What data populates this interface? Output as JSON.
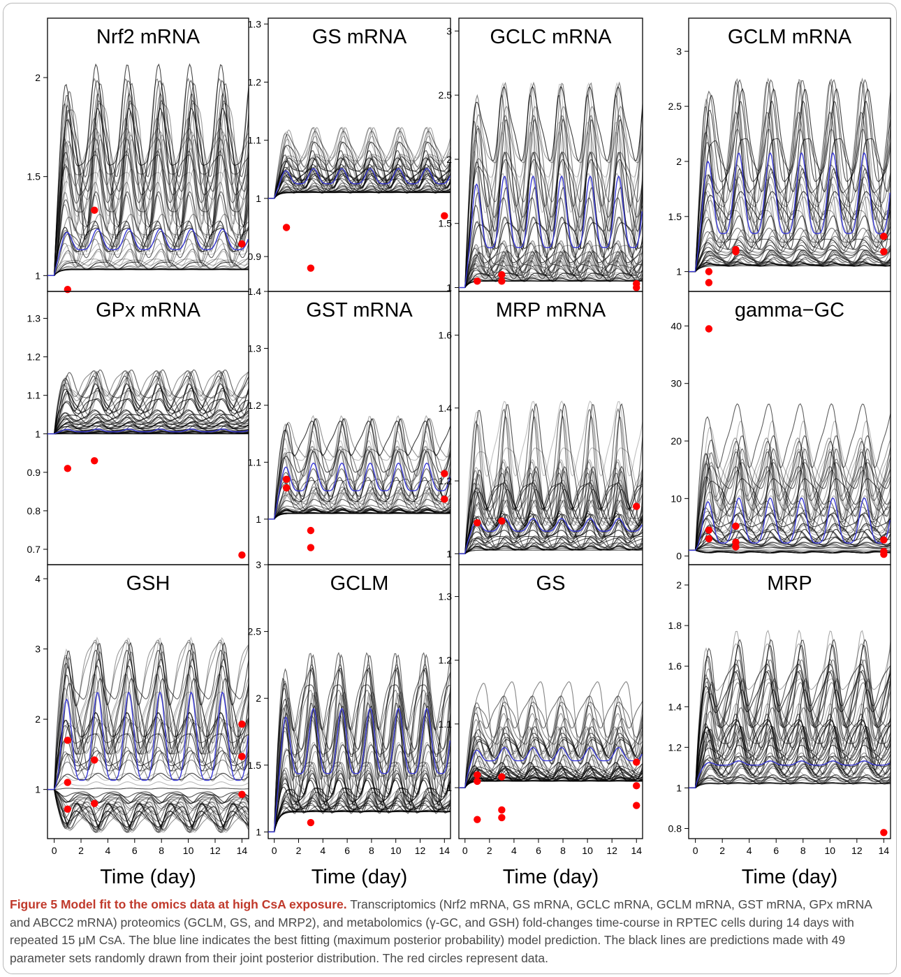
{
  "caption": {
    "label": "Figure 5",
    "title": "Model fit to the omics data at high CsA exposure.",
    "text": "Transcriptomics (Nrf2 mRNA, GS mRNA, GCLC mRNA, GCLM mRNA, GST mRNA, GPx mRNA and ABCC2 mRNA) proteomics (GCLM, GS, and MRP2), and metabolomics (γ-GC, and GSH) fold-changes time-course in RPTEC cells during 14 days with repeated 15 μM CsA. The blue line indicates the best fitting (maximum posterior probability) model prediction. The black lines are predictions made with 49 parameter sets randomly drawn from their joint posterior distribution. The red circles represent data."
  },
  "colors": {
    "best_fit": "#3a3ad6",
    "posterior": "#000000",
    "data": "#ff0000"
  },
  "chart_data": [
    {
      "type": "line",
      "title": "Nrf2 mRNA",
      "xlabel": "",
      "xlim": [
        -0.5,
        14.5
      ],
      "ylim": [
        0.92,
        2.3
      ],
      "yticks": [
        1.0,
        1.5,
        2.0
      ],
      "xticks": [],
      "baseline": 1.0,
      "best_fit": {
        "mean": 1.17,
        "amp": 0.06,
        "period": 2.33
      },
      "posterior_envelope": {
        "min": 1.03,
        "max": 2.16
      },
      "points": [
        [
          1,
          0.93
        ],
        [
          3,
          1.33
        ],
        [
          14,
          1.16
        ]
      ]
    },
    {
      "type": "line",
      "title": "GS mRNA",
      "xlabel": "",
      "xlim": [
        -0.5,
        14.5
      ],
      "ylim": [
        0.84,
        1.31
      ],
      "yticks": [
        0.9,
        1.0,
        1.1,
        1.2,
        1.3
      ],
      "xticks": [],
      "baseline": 1.0,
      "best_fit": {
        "mean": 1.035,
        "amp": 0.015,
        "period": 2.33
      },
      "posterior_envelope": {
        "min": 1.01,
        "max": 1.15
      },
      "points": [
        [
          1,
          0.95
        ],
        [
          3,
          0.88
        ],
        [
          14,
          0.97
        ]
      ]
    },
    {
      "type": "line",
      "title": "GCLC mRNA",
      "xlabel": "",
      "xlim": [
        -0.5,
        14.5
      ],
      "ylim": [
        0.97,
        3.1
      ],
      "yticks": [
        1.0,
        1.5,
        2.0,
        2.5,
        3.0
      ],
      "xticks": [],
      "baseline": 1.0,
      "best_fit": {
        "mean": 1.52,
        "amp": 0.32,
        "period": 2.33
      },
      "posterior_envelope": {
        "min": 1.05,
        "max": 2.75
      },
      "points": [
        [
          1,
          1.05
        ],
        [
          3,
          1.1
        ],
        [
          3,
          1.05
        ],
        [
          14,
          1.03
        ],
        [
          14,
          1.0
        ]
      ]
    },
    {
      "type": "line",
      "title": "GCLM mRNA",
      "xlabel": "",
      "xlim": [
        -0.5,
        14.5
      ],
      "ylim": [
        0.82,
        3.3
      ],
      "yticks": [
        1.0,
        1.5,
        2.0,
        2.5,
        3.0
      ],
      "xticks": [],
      "baseline": 1.0,
      "best_fit": {
        "mean": 1.62,
        "amp": 0.42,
        "period": 2.33
      },
      "posterior_envelope": {
        "min": 1.05,
        "max": 2.9
      },
      "points": [
        [
          1,
          1.0
        ],
        [
          1,
          0.9
        ],
        [
          3,
          1.2
        ],
        [
          3,
          1.18
        ],
        [
          14,
          1.32
        ],
        [
          14,
          1.18
        ]
      ]
    },
    {
      "type": "line",
      "title": "GPx mRNA",
      "xlabel": "",
      "xlim": [
        -0.5,
        14.5
      ],
      "ylim": [
        0.66,
        1.37
      ],
      "yticks": [
        0.7,
        0.8,
        0.9,
        1.0,
        1.1,
        1.2,
        1.3
      ],
      "xticks": [],
      "baseline": 1.0,
      "best_fit": {
        "mean": 1.008,
        "amp": 0.004,
        "period": 2.33
      },
      "posterior_envelope": {
        "min": 1.0,
        "max": 1.19
      },
      "points": [
        [
          1,
          0.91
        ],
        [
          3,
          0.93
        ],
        [
          14,
          0.685
        ]
      ]
    },
    {
      "type": "line",
      "title": "GST mRNA",
      "xlabel": "",
      "xlim": [
        -0.5,
        14.5
      ],
      "ylim": [
        0.92,
        1.4
      ],
      "yticks": [
        1.0,
        1.1,
        1.2,
        1.3,
        1.4
      ],
      "xticks": [],
      "baseline": 1.0,
      "best_fit": {
        "mean": 1.068,
        "amp": 0.028,
        "period": 2.33
      },
      "posterior_envelope": {
        "min": 1.01,
        "max": 1.24
      },
      "points": [
        [
          1,
          1.07
        ],
        [
          1,
          1.055
        ],
        [
          3,
          0.98
        ],
        [
          3,
          0.95
        ],
        [
          14,
          1.08
        ],
        [
          14,
          1.035
        ]
      ]
    },
    {
      "type": "line",
      "title": "MRP mRNA",
      "xlabel": "",
      "xlim": [
        -0.5,
        14.5
      ],
      "ylim": [
        0.97,
        1.72
      ],
      "yticks": [
        1.0,
        1.2,
        1.4,
        1.6
      ],
      "xticks": [],
      "baseline": 1.0,
      "best_fit": {
        "mean": 1.075,
        "amp": 0.02,
        "period": 2.33
      },
      "posterior_envelope": {
        "min": 1.01,
        "max": 1.52
      },
      "points": [
        [
          1,
          1.085
        ],
        [
          3,
          1.09
        ],
        [
          14,
          1.13
        ]
      ]
    },
    {
      "type": "line",
      "title": "gamma−GC",
      "xlabel": "",
      "xlim": [
        -0.5,
        14.5
      ],
      "ylim": [
        -1.5,
        46
      ],
      "yticks": [
        0,
        10,
        20,
        30,
        40
      ],
      "xticks": [],
      "baseline": 1.0,
      "best_fit": {
        "mean": 5.2,
        "amp": 4.5,
        "period": 2.33
      },
      "posterior_envelope": {
        "min": 0.5,
        "max": 29
      },
      "points": [
        [
          1,
          39.5
        ],
        [
          1,
          4.5
        ],
        [
          1,
          3
        ],
        [
          3,
          5.2
        ],
        [
          3,
          2.4
        ],
        [
          3,
          1.6
        ],
        [
          14,
          2.8
        ],
        [
          14,
          0.8
        ],
        [
          14,
          0.3
        ]
      ]
    },
    {
      "type": "line",
      "title": "GSH",
      "xlabel": "Time (day)",
      "xlim": [
        -0.5,
        14.5
      ],
      "ylim": [
        0.3,
        4.2
      ],
      "yticks": [
        1,
        2,
        3,
        4
      ],
      "xticks": [
        0,
        2,
        4,
        6,
        8,
        10,
        12,
        14
      ],
      "baseline": 1.0,
      "best_fit": {
        "mean": 1.6,
        "amp": 0.72,
        "period": 2.33
      },
      "posterior_envelope": {
        "min": 0.4,
        "max": 3.55
      },
      "points": [
        [
          1,
          1.7
        ],
        [
          1,
          1.1
        ],
        [
          1,
          0.72
        ],
        [
          3,
          1.42
        ],
        [
          3,
          0.8
        ],
        [
          14,
          1.93
        ],
        [
          14,
          1.47
        ],
        [
          14,
          0.93
        ]
      ]
    },
    {
      "type": "line",
      "title": "GCLM",
      "xlabel": "Time (day)",
      "xlim": [
        -0.5,
        14.5
      ],
      "ylim": [
        0.95,
        3.0
      ],
      "yticks": [
        1.0,
        1.5,
        2.0,
        2.5,
        3.0
      ],
      "xticks": [
        0,
        2,
        4,
        6,
        8,
        10,
        12,
        14
      ],
      "baseline": 1.0,
      "best_fit": {
        "mean": 1.62,
        "amp": 0.28,
        "period": 2.33
      },
      "posterior_envelope": {
        "min": 1.15,
        "max": 2.5
      },
      "points": [
        [
          3,
          1.07
        ]
      ]
    },
    {
      "type": "line",
      "title": "GS",
      "xlabel": "Time (day)",
      "xlim": [
        -0.5,
        14.5
      ],
      "ylim": [
        0.92,
        1.35
      ],
      "yticks": [
        1.0,
        1.1,
        1.2,
        1.3
      ],
      "xticks": [
        0,
        2,
        4,
        6,
        8,
        10,
        12,
        14
      ],
      "baseline": 1.0,
      "best_fit": {
        "mean": 1.05,
        "amp": 0.012,
        "period": 2.33
      },
      "posterior_envelope": {
        "min": 1.01,
        "max": 1.2
      },
      "points": [
        [
          1,
          1.02
        ],
        [
          1,
          1.01
        ],
        [
          1,
          0.95
        ],
        [
          3,
          1.017
        ],
        [
          3,
          0.965
        ],
        [
          3,
          0.953
        ],
        [
          14,
          1.04
        ],
        [
          14,
          1.003
        ],
        [
          14,
          0.972
        ]
      ]
    },
    {
      "type": "line",
      "title": "MRP",
      "xlabel": "Time (day)",
      "xlim": [
        -0.5,
        14.5
      ],
      "ylim": [
        0.75,
        2.1
      ],
      "yticks": [
        0.8,
        1.0,
        1.2,
        1.4,
        1.6,
        1.8,
        2.0
      ],
      "xticks": [
        0,
        2,
        4,
        6,
        8,
        10,
        12,
        14
      ],
      "baseline": 1.0,
      "best_fit": {
        "mean": 1.12,
        "amp": 0.012,
        "period": 2.33
      },
      "posterior_envelope": {
        "min": 1.02,
        "max": 1.85
      },
      "points": [
        [
          14,
          0.78
        ]
      ]
    }
  ]
}
